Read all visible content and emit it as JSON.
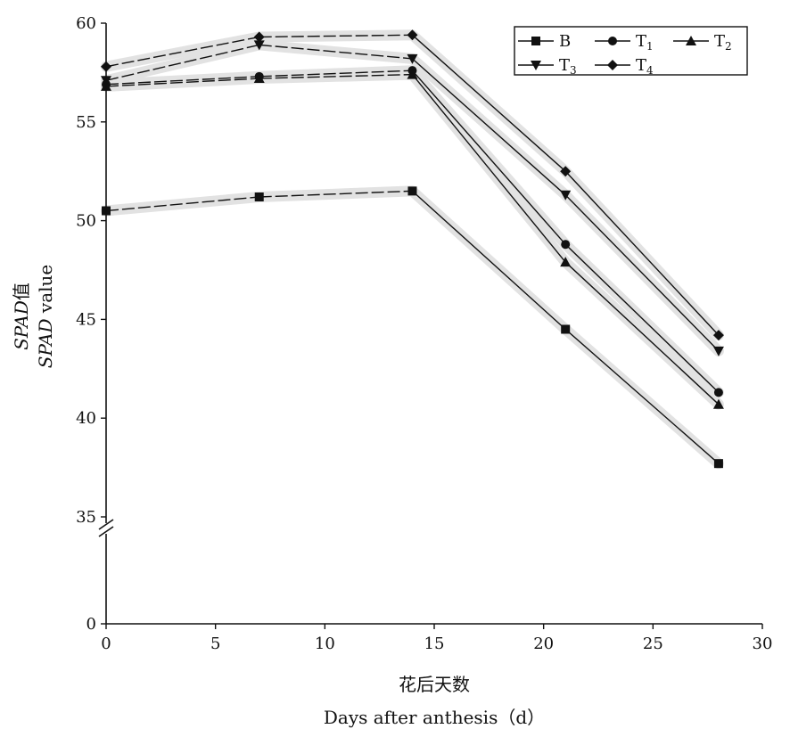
{
  "chart_data": {
    "type": "line",
    "x": [
      0,
      7,
      14,
      21,
      28
    ],
    "series": [
      {
        "name": "B",
        "marker": "square",
        "values": [
          50.5,
          51.2,
          51.5,
          44.5,
          37.7
        ]
      },
      {
        "name": "T1",
        "marker": "circle",
        "values": [
          56.9,
          57.3,
          57.6,
          48.8,
          41.3
        ]
      },
      {
        "name": "T2",
        "marker": "triangle-up",
        "values": [
          56.8,
          57.2,
          57.4,
          47.9,
          40.7
        ]
      },
      {
        "name": "T3",
        "marker": "triangle-down",
        "values": [
          57.1,
          58.9,
          58.2,
          51.3,
          43.4
        ]
      },
      {
        "name": "T4",
        "marker": "diamond",
        "values": [
          57.8,
          59.3,
          59.4,
          52.5,
          44.2
        ]
      }
    ],
    "xlabel_cn": "花后天数",
    "xlabel_en": "Days after anthesis（d）",
    "ylabel_cn_italic": "SPAD",
    "ylabel_cn_suffix": "值",
    "ylabel_en_italic": "SPAD",
    "ylabel_en_suffix": " value",
    "xlim": [
      0,
      30
    ],
    "x_ticks": [
      "0",
      "5",
      "10",
      "15",
      "20",
      "25",
      "30"
    ],
    "ylim_upper": [
      35,
      60
    ],
    "y_ticks": [
      "0",
      "35",
      "40",
      "45",
      "50",
      "55",
      "60"
    ],
    "y_axis_break": true,
    "grid": false,
    "legend_position": "top-right",
    "legend": {
      "B": "B",
      "T1": {
        "base": "T",
        "sub": "1"
      },
      "T2": {
        "base": "T",
        "sub": "2"
      },
      "T3": {
        "base": "T",
        "sub": "3"
      },
      "T4": {
        "base": "T",
        "sub": "4"
      }
    },
    "colors": {
      "line": "#111111",
      "shadow": "#e2e2e2"
    }
  }
}
